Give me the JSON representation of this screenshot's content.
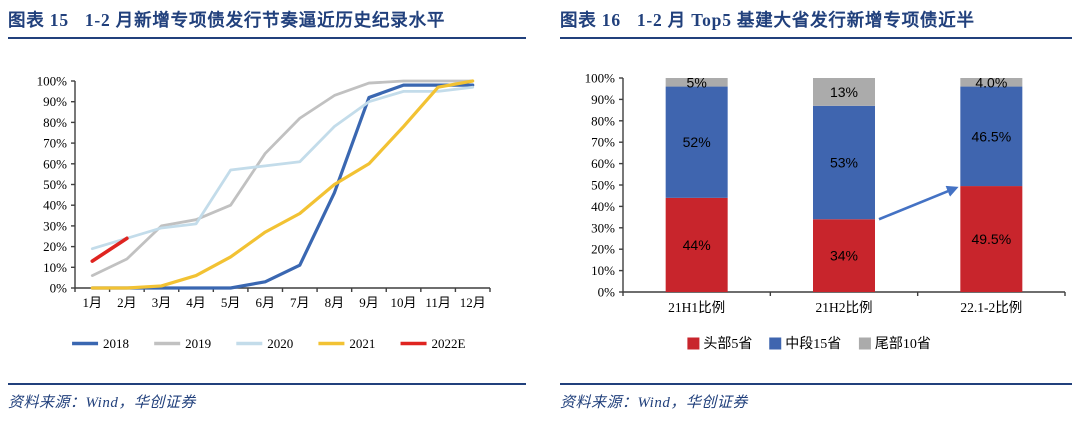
{
  "panels": [
    {
      "figure_label": "图表 15",
      "title": "1-2 月新增专项债发行节奏逼近历史纪录水平",
      "source": "资料来源：Wind，华创证券"
    },
    {
      "figure_label": "图表 16",
      "title": "1-2 月 Top5 基建大省发行新增专项债近半",
      "source": "资料来源：Wind，华创证券"
    }
  ],
  "colors": {
    "navy": "#21407C",
    "axis": "#3F3F3F",
    "arrow": "#4472C4"
  },
  "chart_data": [
    {
      "type": "line",
      "title": "1-2 月新增专项债发行节奏逼近历史纪录水平",
      "categories": [
        "1月",
        "2月",
        "3月",
        "4月",
        "5月",
        "6月",
        "7月",
        "8月",
        "9月",
        "10月",
        "11月",
        "12月"
      ],
      "series": [
        {
          "name": "2018",
          "color": "#3A67B1",
          "line_width": 3.2,
          "values": [
            0,
            0,
            0,
            0,
            0,
            3,
            11,
            46,
            92,
            98,
            98,
            98
          ]
        },
        {
          "name": "2019",
          "color": "#C1C1C1",
          "line_width": 2.8,
          "values": [
            6,
            14,
            30,
            33,
            40,
            65,
            82,
            93,
            99,
            100,
            100,
            100
          ]
        },
        {
          "name": "2020",
          "color": "#C3DCEA",
          "line_width": 2.8,
          "values": [
            19,
            24,
            29,
            31,
            57,
            59,
            61,
            78,
            90,
            95,
            95,
            97
          ]
        },
        {
          "name": "2021",
          "color": "#F2C233",
          "line_width": 3.2,
          "values": [
            0,
            0,
            1,
            6,
            15,
            27,
            36,
            50,
            60,
            78,
            97,
            100
          ]
        },
        {
          "name": "2022E",
          "color": "#DF2420",
          "line_width": 3.6,
          "values": [
            13,
            24,
            null,
            null,
            null,
            null,
            null,
            null,
            null,
            null,
            null,
            null
          ]
        }
      ],
      "ylim": [
        0,
        100
      ],
      "ytick_step": 10,
      "ytick_suffix": "%",
      "legend_position": "bottom",
      "grid": false
    },
    {
      "type": "bar",
      "stacked": true,
      "title": "1-2 月 Top5 基建大省发行新增专项债近半",
      "categories": [
        "21H1比例",
        "21H2比例",
        "22.1-2比例"
      ],
      "series": [
        {
          "name": "头部5省",
          "color": "#C8252C",
          "values": [
            44,
            34,
            49.5
          ],
          "labels": [
            "44%",
            "34%",
            "49.5%"
          ]
        },
        {
          "name": "中段15省",
          "color": "#3F65AF",
          "values": [
            52,
            53,
            46.5
          ],
          "labels": [
            "52%",
            "53%",
            "46.5%"
          ]
        },
        {
          "name": "尾部10省",
          "color": "#ABABAB",
          "values": [
            5,
            13,
            4
          ],
          "labels": [
            "5%",
            "13%",
            "4.0%"
          ]
        }
      ],
      "ylim": [
        0,
        100
      ],
      "ytick_step": 10,
      "ytick_suffix": "%",
      "legend_position": "bottom",
      "annotation_arrow": {
        "from_category_index": 1,
        "from_value": 34,
        "to_category_index": 2,
        "to_value": 48.5,
        "color": "#4472C4"
      }
    }
  ]
}
